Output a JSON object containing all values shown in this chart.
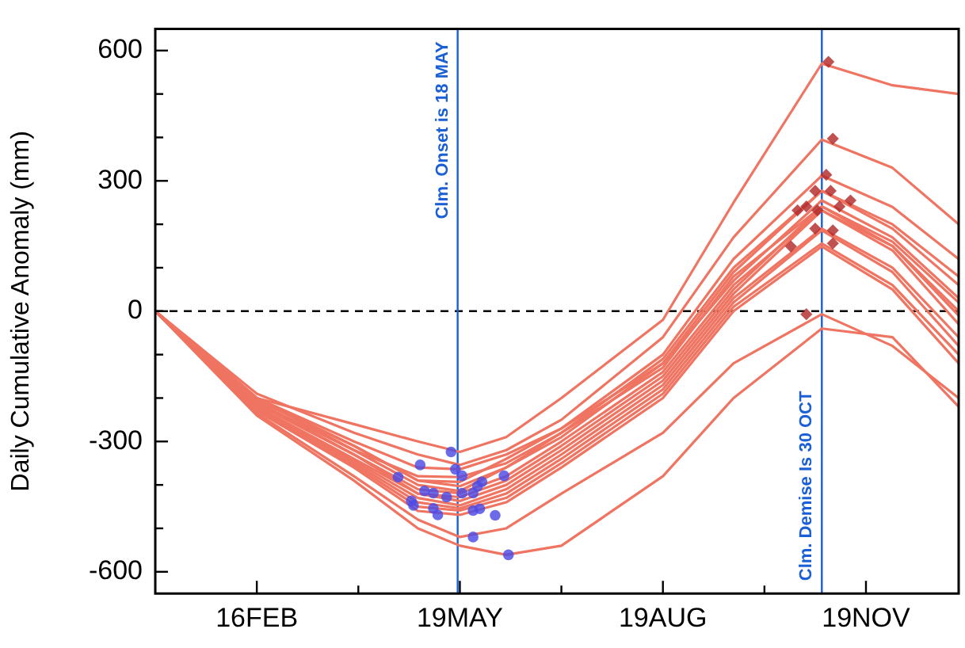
{
  "chart_data": {
    "type": "line",
    "ylabel": "Daily Cumulative Anomaly (mm)",
    "x": [
      "--01-01",
      "--02-16",
      "--04-01",
      "--04-30",
      "--05-19",
      "--06-09",
      "--07-04",
      "--08-19",
      "--09-20",
      "--10-30",
      "--12-01",
      "--12-31"
    ],
    "series": [
      {
        "color": "#ef7461",
        "values": [
          0,
          -200,
          -260,
          -300,
          -324,
          -290,
          -200,
          -20,
          250,
          570,
          520,
          500
        ]
      },
      {
        "color": "#ef7461",
        "values": [
          0,
          -190,
          -280,
          -330,
          -354,
          -320,
          -250,
          -60,
          170,
          395,
          330,
          200
        ]
      },
      {
        "color": "#ef7461",
        "values": [
          0,
          -200,
          -300,
          -360,
          -364,
          -330,
          -270,
          -100,
          120,
          312,
          240,
          120
        ]
      },
      {
        "color": "#ef7461",
        "values": [
          0,
          -210,
          -320,
          -380,
          -382,
          -350,
          -280,
          -110,
          100,
          277,
          200,
          80
        ]
      },
      {
        "color": "#ef7461",
        "values": [
          0,
          -205,
          -310,
          -390,
          -393,
          -340,
          -270,
          -120,
          90,
          277,
          190,
          60
        ]
      },
      {
        "color": "#ef7461",
        "values": [
          0,
          -200,
          -320,
          -400,
          -414,
          -360,
          -280,
          -130,
          80,
          241,
          160,
          20
        ]
      },
      {
        "color": "#ef7461",
        "values": [
          0,
          -215,
          -330,
          -410,
          -419,
          -380,
          -300,
          -140,
          60,
          232,
          150,
          0
        ]
      },
      {
        "color": "#ef7461",
        "values": [
          0,
          -200,
          -310,
          -390,
          -403,
          -360,
          -290,
          -120,
          70,
          255,
          170,
          30
        ]
      },
      {
        "color": "#ef7461",
        "values": [
          0,
          -210,
          -330,
          -420,
          -428,
          -390,
          -310,
          -150,
          50,
          241,
          150,
          -10
        ]
      },
      {
        "color": "#ef7461",
        "values": [
          0,
          -220,
          -340,
          -420,
          -437,
          -400,
          -320,
          -160,
          40,
          232,
          140,
          -30
        ]
      },
      {
        "color": "#ef7461",
        "values": [
          0,
          -220,
          -345,
          -430,
          -447,
          -410,
          -330,
          -170,
          30,
          190,
          100,
          -60
        ]
      },
      {
        "color": "#ef7461",
        "values": [
          0,
          -225,
          -350,
          -440,
          -454,
          -420,
          -340,
          -180,
          20,
          186,
          90,
          -80
        ]
      },
      {
        "color": "#ef7461",
        "values": [
          0,
          -225,
          -355,
          -450,
          -459,
          -430,
          -350,
          -190,
          10,
          156,
          60,
          -100
        ]
      },
      {
        "color": "#ef7461",
        "values": [
          0,
          -230,
          -360,
          -460,
          -469,
          -440,
          -360,
          -200,
          0,
          149,
          50,
          -120
        ]
      },
      {
        "color": "#ef7461",
        "values": [
          0,
          -235,
          -380,
          -480,
          -520,
          -500,
          -420,
          -280,
          -120,
          -7,
          -80,
          -200
        ]
      },
      {
        "color": "#ef7461",
        "values": [
          0,
          -240,
          -390,
          -500,
          -540,
          -561,
          -540,
          -380,
          -200,
          -40,
          -60,
          -220
        ]
      },
      {
        "type": "scatter",
        "marker": "circle",
        "color": "#4b4be6",
        "x": [
          "--04-21",
          "--05-01",
          "--04-27",
          "--04-28",
          "--05-03",
          "--05-07",
          "--05-07",
          "--05-09",
          "--05-13",
          "--05-15",
          "--05-17",
          "--05-20",
          "--05-20",
          "--05-25",
          "--05-25",
          "--05-25",
          "--05-27",
          "--05-29",
          "--05-28",
          "--06-04",
          "--06-08",
          "--06-10"
        ],
        "values": [
          -382,
          -354,
          -437,
          -447,
          -414,
          -419,
          -454,
          -469,
          -428,
          -324,
          -364,
          -379,
          -419,
          -419,
          -459,
          -520,
          -403,
          -393,
          -455,
          -470,
          -379,
          -561
        ]
      },
      {
        "type": "scatter",
        "marker": "diamond",
        "color": "#b02a2a",
        "x": [
          "--11-02",
          "--11-04",
          "--11-01",
          "--10-27",
          "--11-03",
          "--10-19",
          "--10-23",
          "--10-28",
          "--11-07",
          "--11-12",
          "--10-27",
          "--11-04",
          "--11-04",
          "--10-16",
          "--10-23"
        ],
        "values": [
          574,
          397,
          314,
          277,
          277,
          232,
          241,
          232,
          241,
          255,
          190,
          186,
          156,
          149,
          -7
        ]
      }
    ],
    "xlim": [
      "--01-01",
      "--12-31"
    ],
    "xticks": [
      {
        "value": "--02-16",
        "label": "16FEB"
      },
      {
        "value": "--04-03",
        "label": null
      },
      {
        "value": "--05-19",
        "label": "19MAY"
      },
      {
        "value": "--07-04",
        "label": null
      },
      {
        "value": "--08-19",
        "label": "19AUG"
      },
      {
        "value": "--10-04",
        "label": null
      },
      {
        "value": "--11-19",
        "label": "19NOV"
      }
    ],
    "ylim": [
      -650,
      650
    ],
    "yticks": [
      -600,
      {
        "value": -500,
        "label": null
      },
      {
        "value": -400,
        "label": null
      },
      -300,
      {
        "value": -200,
        "label": null
      },
      {
        "value": -100,
        "label": null
      },
      0,
      {
        "value": 100,
        "label": null
      },
      {
        "value": 200,
        "label": null
      },
      300,
      {
        "value": 400,
        "label": null
      },
      {
        "value": 500,
        "label": null
      },
      600
    ],
    "marker": "none",
    "line_style": "solid",
    "grid": false,
    "legend": false,
    "ref_lines": [
      {
        "axis": "y",
        "value": 0,
        "label": null,
        "color": "#000000",
        "line_style": "dashed"
      },
      {
        "axis": "x",
        "value": "--05-18",
        "label": "Clm. Onset is 18 MAY",
        "color": "#1a5fd6",
        "line_style": "solid"
      },
      {
        "axis": "x",
        "value": "--10-30",
        "label": "Clm. Demise Is 30 OCT",
        "color": "#1a5fd6",
        "line_style": "solid"
      }
    ]
  }
}
